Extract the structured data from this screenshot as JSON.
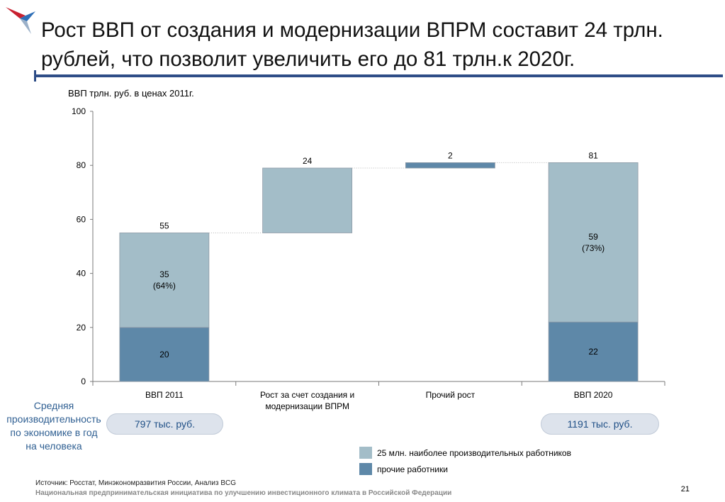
{
  "header": {
    "title": "Рост ВВП от создания и модернизации ВПРМ составит 24 трлн. рублей, что позволит увеличить его до 81 трлн.к 2020г."
  },
  "colors": {
    "top_segment": "#a3bdc8",
    "bottom_segment": "#5e88a8",
    "title_rule": "#2e4d87",
    "productivity_text": "#2f5f92"
  },
  "chart_data": {
    "type": "bar",
    "subtype": "waterfall-stacked",
    "ylabel": "ВВП трлн. руб. в ценах 2011г.",
    "ylim": [
      0,
      100
    ],
    "yticks": [
      "0",
      "20",
      "40",
      "60",
      "80",
      "100"
    ],
    "categories": [
      "ВВП 2011",
      "Рост за счет создания и модернизации ВПРМ",
      "Прочий рост",
      "ВВП 2020"
    ],
    "series": [
      {
        "name": "25 млн. наиболее производительных работников",
        "values": [
          35,
          24,
          null,
          59
        ]
      },
      {
        "name": "прочие работники",
        "values": [
          20,
          null,
          2,
          22
        ]
      }
    ],
    "bars": [
      {
        "category": "ВВП 2011",
        "base": 0,
        "segments": [
          {
            "series": "прочие работники",
            "value": 20,
            "label": "20"
          },
          {
            "series": "25 млн. наиболее производительных работников",
            "value": 35,
            "label": "35",
            "sublabel": "(64%)"
          }
        ],
        "total_label": "55"
      },
      {
        "category": "Рост за счет создания и модернизации ВПРМ",
        "base": 55,
        "segments": [
          {
            "series": "25 млн. наиболее производительных работников",
            "value": 24,
            "label": ""
          }
        ],
        "total_label": "24"
      },
      {
        "category": "Прочий рост",
        "base": 79,
        "segments": [
          {
            "series": "прочие работники",
            "value": 2,
            "label": ""
          }
        ],
        "total_label": "2"
      },
      {
        "category": "ВВП 2020",
        "base": 0,
        "segments": [
          {
            "series": "прочие работники",
            "value": 22,
            "label": "22"
          },
          {
            "series": "25 млн. наиболее производительных работников",
            "value": 59,
            "label": "59",
            "sublabel": "(73%)"
          }
        ],
        "total_label": "81"
      }
    ],
    "legend": [
      "25 млн. наиболее производительных работников",
      "прочие работники"
    ],
    "legend_position": "bottom"
  },
  "productivity": {
    "label": "Средняя производительность по экономике в год на человека",
    "value_2011": "797 тыс. руб.",
    "value_2020": "1191 тыс. руб."
  },
  "footer": {
    "source": "Источник: Росстат, Минэкономразвития России, Анализ BCG",
    "organization": "Национальная предпринимательская инициатива по улучшению инвестиционного климата в Российской Федерации",
    "page_number": "21"
  }
}
